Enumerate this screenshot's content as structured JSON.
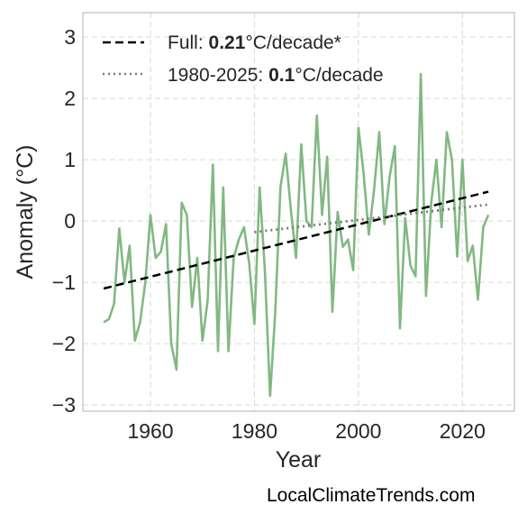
{
  "chart_data": {
    "type": "line",
    "xlabel": "Year",
    "ylabel": "Anomaly (°C)",
    "xlim": [
      1947,
      2030
    ],
    "ylim": [
      -3.1,
      3.4
    ],
    "xticks": [
      1960,
      1980,
      2000,
      2020
    ],
    "yticks": [
      -3,
      -2,
      -1,
      0,
      1,
      2,
      3
    ],
    "ytick_labels": [
      "−3",
      "−2",
      "−1",
      "0",
      "1",
      "2",
      "3"
    ],
    "grid": true,
    "legend_position": "top-left",
    "colors": {
      "series": "#82b882",
      "full_trend": "#000000",
      "recent_trend": "#7a7a7a"
    },
    "series": [
      {
        "x": [
          1951,
          1952,
          1953,
          1954,
          1955,
          1956,
          1957,
          1958,
          1959,
          1960,
          1961,
          1962,
          1963,
          1964,
          1965,
          1966,
          1967,
          1968,
          1969,
          1970,
          1971,
          1972,
          1973,
          1974,
          1975,
          1976,
          1977,
          1978,
          1979,
          1980,
          1981,
          1982,
          1983,
          1984,
          1985,
          1986,
          1987,
          1988,
          1989,
          1990,
          1991,
          1992,
          1993,
          1994,
          1995,
          1996,
          1997,
          1998,
          1999,
          2000,
          2001,
          2002,
          2003,
          2004,
          2005,
          2006,
          2007,
          2008,
          2009,
          2010,
          2011,
          2012,
          2013,
          2014,
          2015,
          2016,
          2017,
          2018,
          2019,
          2020,
          2021,
          2022,
          2023,
          2024,
          2025
        ],
        "y": [
          -1.65,
          -1.6,
          -1.35,
          -0.12,
          -1.0,
          -0.4,
          -1.95,
          -1.65,
          -1.0,
          0.1,
          -0.6,
          -0.5,
          -0.05,
          -2.0,
          -2.42,
          0.3,
          0.1,
          -1.4,
          -0.6,
          -1.95,
          -1.3,
          0.92,
          -2.12,
          0.55,
          -2.12,
          -0.6,
          -0.3,
          -0.1,
          -0.7,
          -1.68,
          0.55,
          -0.8,
          -2.85,
          -1.5,
          0.55,
          1.1,
          0.2,
          -0.6,
          1.25,
          0.0,
          -0.1,
          1.72,
          0.1,
          1.05,
          -1.48,
          0.15,
          -0.42,
          -0.3,
          -0.8,
          1.52,
          0.78,
          -0.22,
          0.5,
          1.45,
          -0.05,
          0.72,
          1.22,
          -1.75,
          0.05,
          -0.72,
          -0.9,
          2.4,
          -1.22,
          0.3,
          1.0,
          -0.1,
          1.45,
          1.0,
          -0.58,
          1.0,
          -0.65,
          -0.4,
          -1.28,
          -0.1,
          0.1
        ]
      },
      {
        "name": "Full",
        "x": [
          1951,
          2025
        ],
        "y": [
          -1.1,
          0.48
        ]
      },
      {
        "name": "1980-2025",
        "x": [
          1980,
          2025
        ],
        "y": [
          -0.18,
          0.27
        ]
      }
    ],
    "legend": [
      {
        "prefix": "Full: ",
        "value": "0.21",
        "suffix": "°C/decade*"
      },
      {
        "prefix": "1980-2025: ",
        "value": "0.1",
        "suffix": "°C/decade"
      }
    ]
  },
  "source_text": "LocalClimateTrends.com"
}
